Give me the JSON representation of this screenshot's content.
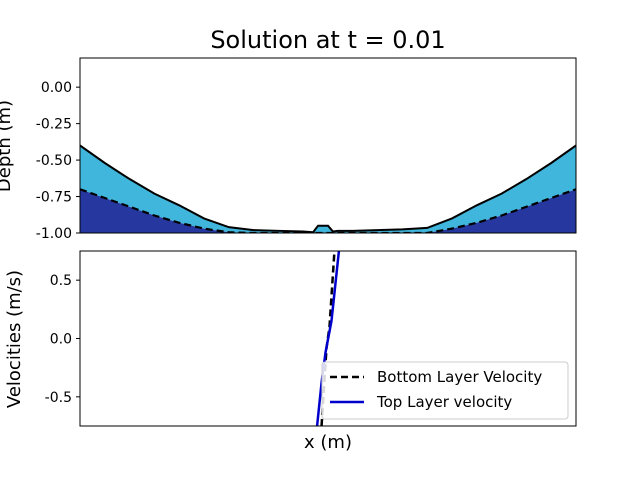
{
  "chart_data": [
    {
      "type": "area",
      "title": "Solution at t = 0.01",
      "xlabel": "",
      "ylabel": "Depth (m)",
      "ylim": [
        -1.0,
        0.2
      ],
      "xlim": [
        0.0,
        1.0
      ],
      "yticks": [
        "0.00",
        "-0.25",
        "-0.50",
        "-0.75",
        "-1.00"
      ],
      "ytick_values": [
        0.0,
        -0.25,
        -0.5,
        -0.75,
        -1.0
      ],
      "colors": {
        "top_layer": "#41b6dc",
        "bottom_layer": "#2637a0",
        "surface": "#000000",
        "interface": "#000000"
      },
      "x": [
        0.0,
        0.05,
        0.1,
        0.15,
        0.2,
        0.25,
        0.3,
        0.35,
        0.4,
        0.45,
        0.47,
        0.48,
        0.5,
        0.51,
        0.52,
        0.55,
        0.6,
        0.65,
        0.7,
        0.75,
        0.8,
        0.85,
        0.9,
        0.95,
        1.0
      ],
      "series": [
        {
          "values": [
            -0.4,
            -0.52,
            -0.63,
            -0.73,
            -0.81,
            -0.9,
            -0.96,
            -0.98,
            -0.985,
            -0.99,
            -0.995,
            -0.95,
            -0.95,
            -0.99,
            -0.985,
            -0.985,
            -0.98,
            -0.975,
            -0.965,
            -0.9,
            -0.81,
            -0.73,
            -0.63,
            -0.52,
            -0.4
          ]
        },
        {
          "values": [
            -0.7,
            -0.76,
            -0.82,
            -0.88,
            -0.93,
            -0.97,
            -0.995,
            -1.0,
            -1.0,
            -1.0,
            -1.0,
            -1.0,
            -1.0,
            -1.0,
            -1.0,
            -1.0,
            -1.0,
            -1.0,
            -1.0,
            -0.97,
            -0.93,
            -0.88,
            -0.82,
            -0.76,
            -0.7
          ]
        }
      ]
    },
    {
      "type": "line",
      "xlabel": "x (m)",
      "ylabel": "Velocities (m/s)",
      "ylim": [
        -0.75,
        0.75
      ],
      "xlim": [
        0.0,
        1.0
      ],
      "yticks": [
        "0.5",
        "0.0",
        "-0.5"
      ],
      "ytick_values": [
        0.5,
        0.0,
        -0.5
      ],
      "legend_position": "lower-right",
      "series": [
        {
          "name": "Bottom Layer Velocity",
          "color": "#000000",
          "style": "dashed",
          "x": [
            0.487,
            0.497,
            0.503,
            0.513
          ],
          "values": [
            -0.75,
            -0.08,
            0.1,
            0.75
          ]
        },
        {
          "name": "Top Layer velocity",
          "color": "#0000cc",
          "style": "solid",
          "x": [
            0.478,
            0.487,
            0.495,
            0.507,
            0.522
          ],
          "values": [
            -0.75,
            -0.38,
            -0.12,
            0.15,
            0.75
          ]
        }
      ]
    }
  ]
}
